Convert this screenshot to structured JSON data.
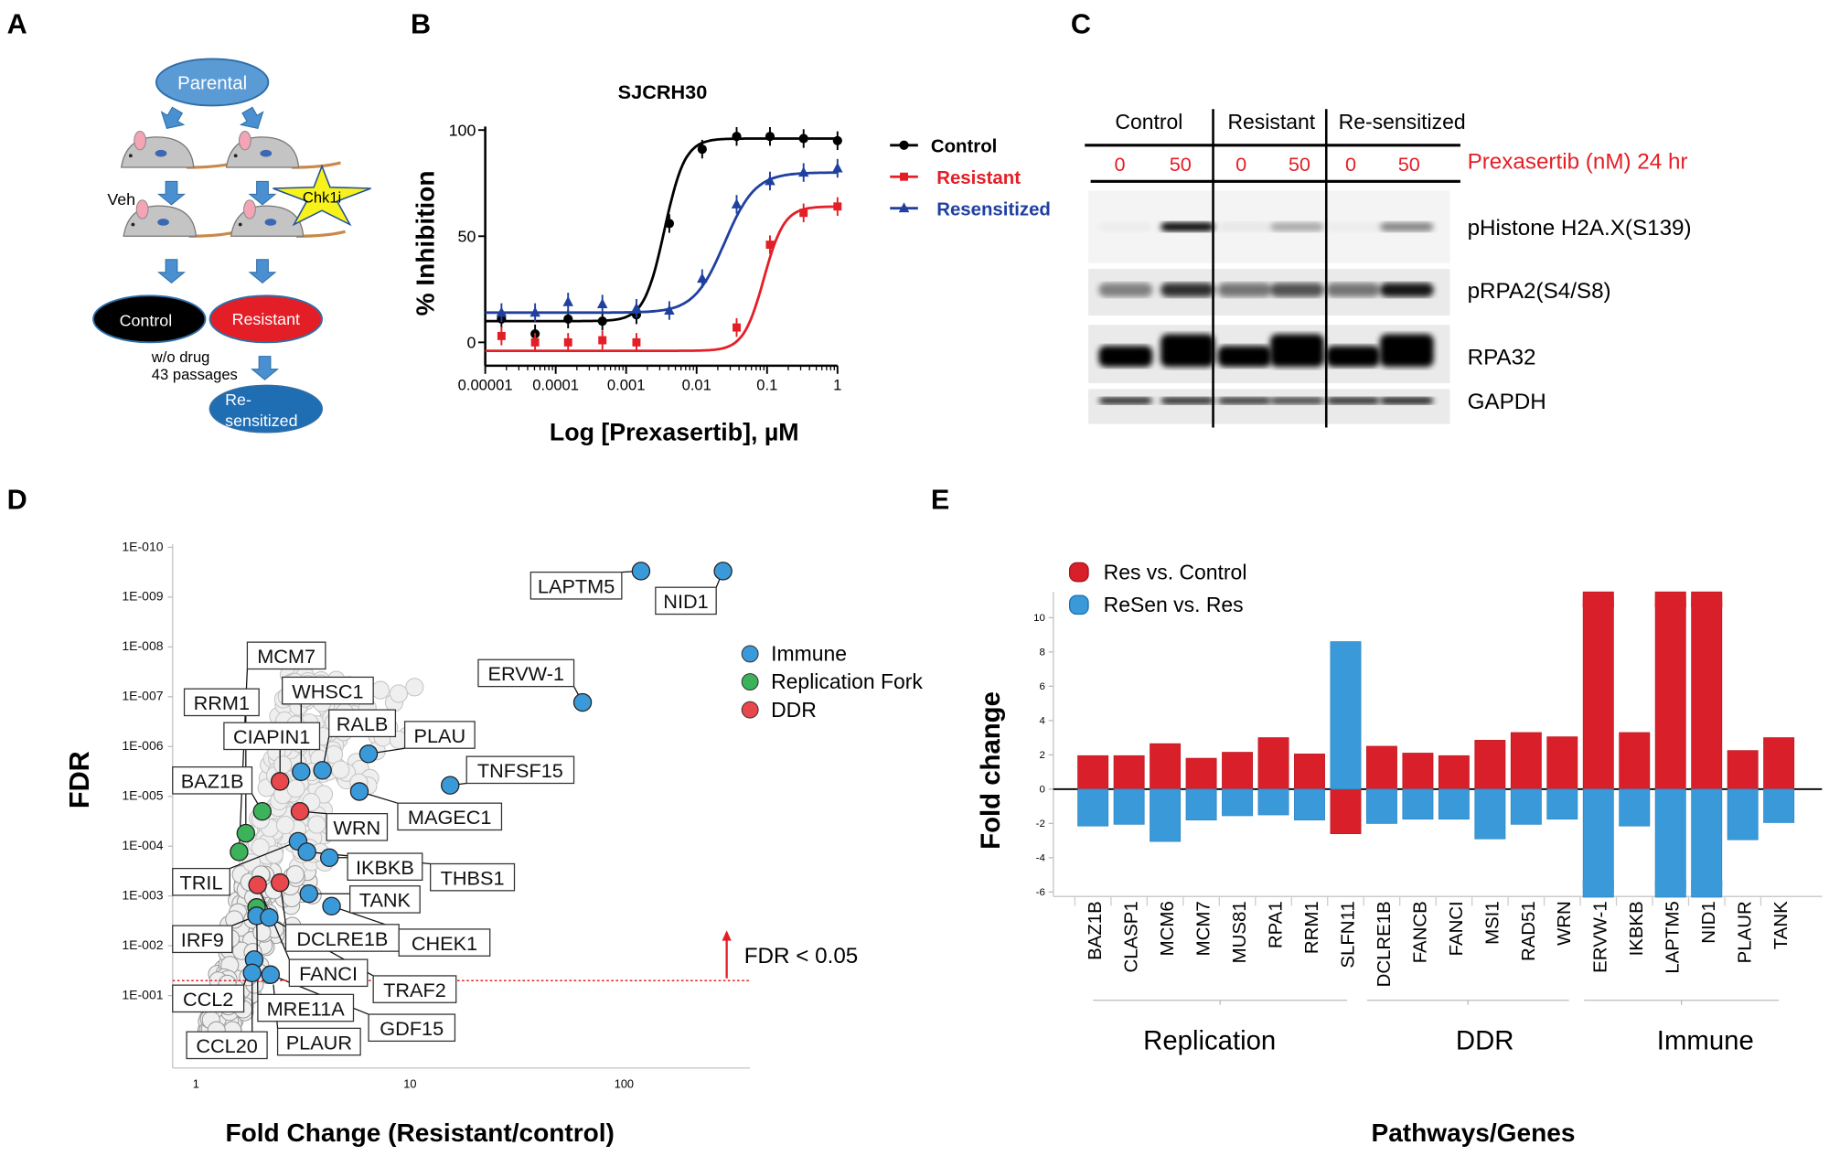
{
  "panel_letters": {
    "a": "A",
    "b": "B",
    "c": "C",
    "d": "D",
    "e": "E"
  },
  "panel_a": {
    "parental": "Parental",
    "veh": "Veh",
    "chk1i": "Chk1i",
    "control": "Control",
    "resistant": "Resistant",
    "wo_drug": "w/o drug",
    "passages": "43 passages",
    "resensitized_line1": "Re-",
    "resensitized_line2": "sensitized",
    "colors": {
      "parental": "#5b9bd5",
      "control": "#000000",
      "resistant": "#e41e26",
      "resensitized": "#1f6db3",
      "arrow": "#4a8fd0",
      "star": "#f7f21c"
    }
  },
  "panel_c": {
    "groups": [
      "Control",
      "Resistant",
      "Re-sensitized"
    ],
    "doses": [
      "0",
      "50",
      "0",
      "50",
      "0",
      "50"
    ],
    "treatment_label": "Prexasertib (nM) 24 hr",
    "rows": [
      {
        "name": "pHistone H2A.X(S139)",
        "band_intensity": [
          0.03,
          0.95,
          0.05,
          0.3,
          0.03,
          0.45
        ]
      },
      {
        "name": "pRPA2(S4/S8)",
        "band_intensity": [
          0.45,
          0.8,
          0.5,
          0.65,
          0.5,
          0.9
        ]
      },
      {
        "name": "RPA32",
        "band_intensity": [
          1,
          1,
          1,
          1,
          1,
          1
        ]
      },
      {
        "name": "GAPDH",
        "band_intensity": [
          0.85,
          0.85,
          0.8,
          0.75,
          0.85,
          0.9
        ]
      }
    ]
  },
  "chart_data": [
    {
      "panel": "B",
      "type": "scatter",
      "title": "SJCRH30",
      "xlabel": "Log [Prexasertib], µM",
      "ylabel": "% Inhibition",
      "xscale": "log",
      "xlim": [
        1e-05,
        1
      ],
      "ylim": [
        -11,
        100
      ],
      "xticks": [
        "0.00001",
        "0.0001",
        "0.001",
        "0.01",
        "0.1",
        "1"
      ],
      "yticks": [
        "0",
        "50",
        "100"
      ],
      "legend_position": "right",
      "series": [
        {
          "name": "Control",
          "color": "#000000",
          "marker": "circle",
          "x": [
            1.7e-05,
            5.1e-05,
            0.00015,
            0.00046,
            0.0014,
            0.0041,
            0.012,
            0.037,
            0.11,
            0.33,
            1
          ],
          "y": [
            11,
            4,
            11,
            10,
            13,
            56,
            91,
            97,
            97,
            96,
            95
          ]
        },
        {
          "name": "Resistant",
          "color": "#e41e26",
          "marker": "square",
          "x": [
            1.7e-05,
            5.1e-05,
            0.00015,
            0.00046,
            0.0014,
            0.037,
            0.11,
            0.33,
            1
          ],
          "y": [
            3,
            0,
            0,
            1,
            0,
            7,
            46,
            61,
            64
          ]
        },
        {
          "name": "Resensitized",
          "color": "#2040a0",
          "marker": "triangle",
          "x": [
            1.7e-05,
            5.1e-05,
            0.00015,
            0.00046,
            0.0014,
            0.0041,
            0.012,
            0.037,
            0.11,
            0.33,
            1
          ],
          "y": [
            14,
            14,
            19,
            18,
            16,
            15,
            30,
            65,
            76,
            80,
            82
          ]
        }
      ]
    },
    {
      "panel": "D",
      "type": "scatter",
      "xlabel": "Fold Change (Resistant/control)",
      "ylabel": "FDR",
      "xscale": "log",
      "yscale": "log (reversed)",
      "xticks": [
        "1",
        "10",
        "100"
      ],
      "yticks": [
        "1E-010",
        "1E-009",
        "1E-008",
        "1E-007",
        "1E-006",
        "1E-005",
        "1E-004",
        "1E-003",
        "1E-002",
        "1E-001"
      ],
      "threshold": {
        "value": 0.05,
        "label": "FDR < 0.05",
        "color": "#e41e26"
      },
      "legend_position": "right",
      "legend": [
        {
          "name": "Immune",
          "color": "#3a9ad9"
        },
        {
          "name": "Replication Fork",
          "color": "#3cb35a"
        },
        {
          "name": "DDR",
          "color": "#e8474d"
        }
      ],
      "points": [
        {
          "label": "LAPTM5",
          "category": "Immune",
          "fc": 120,
          "fdr": 3e-10
        },
        {
          "label": "NID1",
          "category": "Immune",
          "fc": 290,
          "fdr": 3e-10
        },
        {
          "label": "ERVW-1",
          "category": "Immune",
          "fc": 64,
          "fdr": 1.3e-07
        },
        {
          "label": "TNFSF15",
          "category": "Immune",
          "fc": 15.4,
          "fdr": 6e-06
        },
        {
          "label": "PLAU",
          "category": "Immune",
          "fc": 6.4,
          "fdr": 1.4e-06
        },
        {
          "label": "RALB",
          "category": "Immune",
          "fc": 3.9,
          "fdr": 3e-06
        },
        {
          "label": "WHSC1",
          "category": "Immune",
          "fc": 3.1,
          "fdr": 3.2e-06
        },
        {
          "label": "MAGEC1",
          "category": "Immune",
          "fc": 5.8,
          "fdr": 8e-06
        },
        {
          "label": "CIAPIN1",
          "category": "DDR",
          "fc": 2.47,
          "fdr": 5e-06
        },
        {
          "label": "WRN",
          "category": "DDR",
          "fc": 3.06,
          "fdr": 2e-05
        },
        {
          "label": "BAZ1B",
          "category": "Replication Fork",
          "fc": 2.04,
          "fdr": 2e-05
        },
        {
          "label": "RRM1",
          "category": "Replication Fork",
          "fc": 1.71,
          "fdr": 5.5e-05
        },
        {
          "label": "MCM7",
          "category": "Replication Fork",
          "fc": 1.59,
          "fdr": 0.00013
        },
        {
          "label": "TRIL",
          "category": "Immune",
          "fc": 3.0,
          "fdr": 8e-05
        },
        {
          "label": "THBS1",
          "category": "Immune",
          "fc": 3.3,
          "fdr": 0.00013
        },
        {
          "label": "IKBKB",
          "category": "Immune",
          "fc": 4.2,
          "fdr": 0.00017
        },
        {
          "label": "FANCI",
          "category": "DDR",
          "fc": 1.94,
          "fdr": 0.0006
        },
        {
          "label": "DCLRE1B",
          "category": "DDR",
          "fc": 2.47,
          "fdr": 0.00054
        },
        {
          "label": "TANK",
          "category": "Immune",
          "fc": 3.37,
          "fdr": 0.0009
        },
        {
          "label": "CHEK1",
          "category": "Immune",
          "fc": 4.3,
          "fdr": 0.0016
        },
        {
          "label": "MRE11A",
          "category": "Replication Fork",
          "fc": 1.92,
          "fdr": 0.0017
        },
        {
          "label": "IRF9",
          "category": "Immune",
          "fc": 1.92,
          "fdr": 0.0025
        },
        {
          "label": "TRAF2",
          "category": "Immune",
          "fc": 2.2,
          "fdr": 0.0027
        },
        {
          "label": "CCL2",
          "category": "Immune",
          "fc": 1.87,
          "fdr": 0.019
        },
        {
          "label": "CCL20",
          "category": "Immune",
          "fc": 1.83,
          "fdr": 0.035
        },
        {
          "label": "GDF15",
          "category": "Immune",
          "fc": 2.23,
          "fdr": 0.038
        },
        {
          "label": "PLAUR",
          "category": "Immune",
          "fc": 2.3,
          "fdr": 0.06
        }
      ]
    },
    {
      "panel": "E",
      "type": "bar",
      "xlabel": "Pathways/Genes",
      "ylabel": "Fold change",
      "ylim": [
        -6.3,
        11.5
      ],
      "yticks": [
        "-6",
        "-4",
        "-2",
        "0",
        "2",
        "4",
        "6",
        "8",
        "10"
      ],
      "legend_position": "top-left",
      "categories": [
        "BAZ1B",
        "CLASP1",
        "MCM6",
        "MCM7",
        "MUS81",
        "RPA1",
        "RRM1",
        "SLFN11",
        "DCLRE1B",
        "FANCB",
        "FANCI",
        "MSI1",
        "RAD51",
        "WRN",
        "ERVW-1",
        "IKBKB",
        "LAPTM5",
        "NID1",
        "PLAUR",
        "TANK"
      ],
      "groups": [
        {
          "name": "Replication",
          "from": "BAZ1B",
          "to": "SLFN11"
        },
        {
          "name": "DDR",
          "from": "DCLRE1B",
          "to": "WRN"
        },
        {
          "name": "Immune",
          "from": "ERVW-1",
          "to": "TANK"
        }
      ],
      "series": [
        {
          "name": "Res vs. Control",
          "color": "#d9202a",
          "values": [
            1.95,
            1.95,
            2.65,
            1.8,
            2.15,
            3.0,
            2.05,
            -2.6,
            2.5,
            2.1,
            1.95,
            2.85,
            3.3,
            3.05,
            11.5,
            3.3,
            11.5,
            11.5,
            2.25,
            3.0
          ]
        },
        {
          "name": "ReSen vs. Res",
          "color": "#3a9ad9",
          "values": [
            -2.15,
            -2.05,
            -3.05,
            -1.8,
            -1.55,
            -1.5,
            -1.8,
            8.6,
            -2.0,
            -1.75,
            -1.75,
            -2.9,
            -2.05,
            -1.75,
            -6.3,
            -2.15,
            -6.3,
            -6.3,
            -2.95,
            -1.95
          ]
        }
      ],
      "truncated_bars": [
        "ERVW-1",
        "LAPTM5",
        "NID1"
      ]
    }
  ]
}
